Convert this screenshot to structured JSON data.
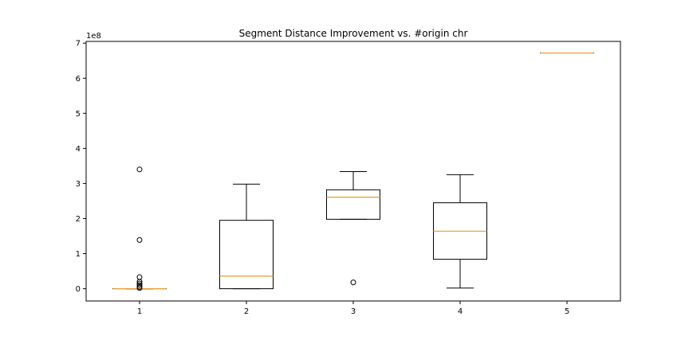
{
  "chart_data": {
    "type": "boxplot",
    "title": "Segment Distance Improvement vs. #origin chr",
    "xlabel": "",
    "ylabel": "",
    "y_scale_label": "1e8",
    "x_ticks": [
      "1",
      "2",
      "3",
      "4",
      "5"
    ],
    "y_ticks": [
      "0",
      "1",
      "2",
      "3",
      "4",
      "5",
      "6",
      "7"
    ],
    "y_tick_values": [
      0,
      1,
      2,
      3,
      4,
      5,
      6,
      7
    ],
    "ylim": [
      -0.35,
      7.05
    ],
    "xlim": [
      0.5,
      5.5
    ],
    "grid": false,
    "units": "1e8",
    "series": [
      {
        "position": 1,
        "q1": 0.0,
        "median": 0.0,
        "q3": 0.0,
        "whisker_low": 0.0,
        "whisker_high": 0.0,
        "fliers": [
          3.4,
          1.39,
          0.33,
          0.2,
          0.15,
          0.1,
          0.05,
          0.02
        ]
      },
      {
        "position": 2,
        "q1": 0.0,
        "median": 0.36,
        "q3": 1.95,
        "whisker_low": 0.0,
        "whisker_high": 2.98,
        "fliers": []
      },
      {
        "position": 3,
        "q1": 1.98,
        "median": 2.61,
        "q3": 2.82,
        "whisker_low": 1.98,
        "whisker_high": 3.34,
        "fliers": [
          0.18
        ]
      },
      {
        "position": 4,
        "q1": 0.84,
        "median": 1.64,
        "q3": 2.45,
        "whisker_low": 0.02,
        "whisker_high": 3.25,
        "fliers": []
      },
      {
        "position": 5,
        "q1": 6.72,
        "median": 6.72,
        "q3": 6.72,
        "whisker_low": 6.72,
        "whisker_high": 6.72,
        "fliers": []
      }
    ],
    "colors": {
      "box": "#000000",
      "median": "#e69d2e",
      "flier": "#000000",
      "background": "#ffffff"
    }
  }
}
